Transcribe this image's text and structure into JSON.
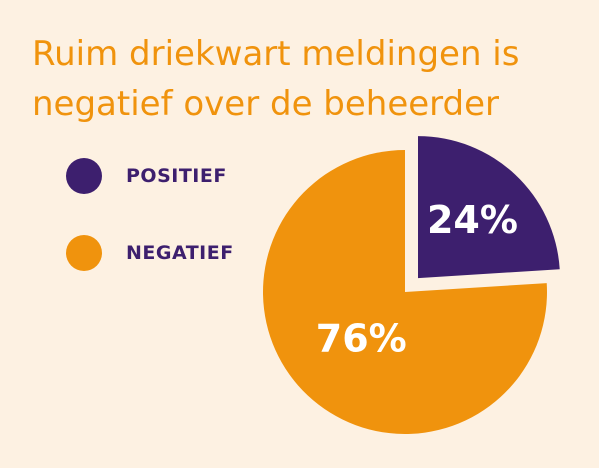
{
  "title_lines": [
    "Ruim driekwart meldingen is",
    "negatief over de beheerder"
  ],
  "legend": [
    {
      "label": "POSITIEF",
      "color": "#3d1f6e"
    },
    {
      "label": "NEGATIEF",
      "color": "#f0930d"
    }
  ],
  "chart_data": {
    "type": "pie",
    "title": "Ruim driekwart meldingen is negatief over de beheerder",
    "slices": [
      {
        "label": "POSITIEF",
        "value": 24,
        "display": "24%",
        "color": "#3d1f6e",
        "exploded": true
      },
      {
        "label": "NEGATIEF",
        "value": 76,
        "display": "76%",
        "color": "#f0930d",
        "exploded": false
      }
    ],
    "legend_position": "left"
  }
}
